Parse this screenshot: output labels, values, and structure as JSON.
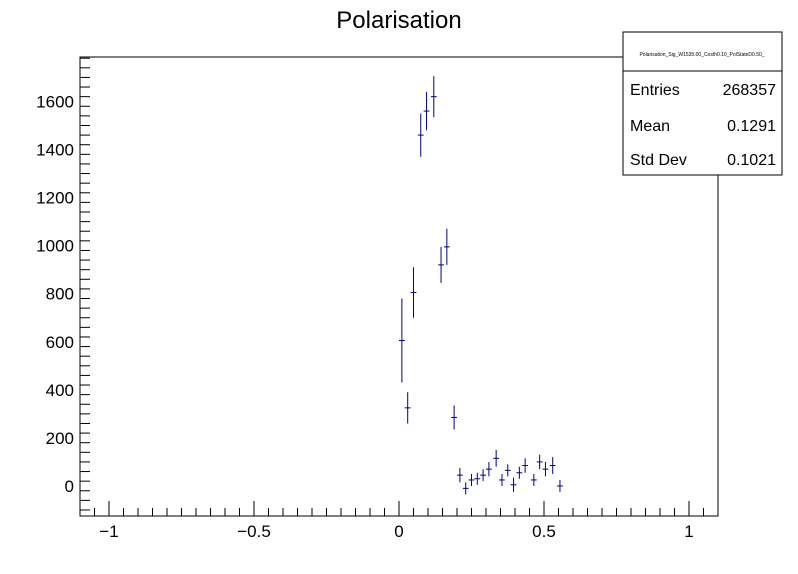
{
  "chart_data": {
    "type": "scatter",
    "title": "Polarisation",
    "xlabel": "",
    "ylabel": "",
    "xlim": [
      -1.1,
      1.1
    ],
    "ylim": [
      -125,
      1785
    ],
    "x_ticks": [
      -1,
      -0.5,
      0,
      0.5,
      1
    ],
    "x_tick_labels": [
      "−1",
      "−0.5",
      "0",
      "0.5",
      "1"
    ],
    "y_ticks": [
      0,
      200,
      400,
      600,
      800,
      1000,
      1200,
      1400,
      1600
    ],
    "y_tick_labels": [
      "0",
      "200",
      "400",
      "600",
      "800",
      "1000",
      "1200",
      "1400",
      "1600"
    ],
    "grid": false,
    "marker_color": "#000080",
    "bin_half_width": 0.01,
    "points": [
      {
        "x": 0.01,
        "y": 605,
        "err": 175
      },
      {
        "x": 0.03,
        "y": 325,
        "err": 65
      },
      {
        "x": 0.05,
        "y": 805,
        "err": 105
      },
      {
        "x": 0.075,
        "y": 1460,
        "err": 90
      },
      {
        "x": 0.095,
        "y": 1560,
        "err": 80
      },
      {
        "x": 0.12,
        "y": 1620,
        "err": 85
      },
      {
        "x": 0.145,
        "y": 920,
        "err": 75
      },
      {
        "x": 0.165,
        "y": 995,
        "err": 75
      },
      {
        "x": 0.19,
        "y": 285,
        "err": 50
      },
      {
        "x": 0.21,
        "y": 45,
        "err": 30
      },
      {
        "x": 0.23,
        "y": -10,
        "err": 25
      },
      {
        "x": 0.25,
        "y": 25,
        "err": 25
      },
      {
        "x": 0.27,
        "y": 30,
        "err": 25
      },
      {
        "x": 0.29,
        "y": 45,
        "err": 25
      },
      {
        "x": 0.31,
        "y": 70,
        "err": 30
      },
      {
        "x": 0.335,
        "y": 115,
        "err": 35
      },
      {
        "x": 0.355,
        "y": 25,
        "err": 25
      },
      {
        "x": 0.375,
        "y": 65,
        "err": 25
      },
      {
        "x": 0.395,
        "y": 5,
        "err": 30
      },
      {
        "x": 0.415,
        "y": 55,
        "err": 25
      },
      {
        "x": 0.435,
        "y": 85,
        "err": 30
      },
      {
        "x": 0.465,
        "y": 25,
        "err": 25
      },
      {
        "x": 0.485,
        "y": 100,
        "err": 30
      },
      {
        "x": 0.505,
        "y": 70,
        "err": 30
      },
      {
        "x": 0.53,
        "y": 85,
        "err": 35
      },
      {
        "x": 0.555,
        "y": 0,
        "err": 25
      }
    ],
    "stats_box": {
      "name": "Polarisation_Sig_W1535.00_Costh0.10_PolStateD0.50_",
      "rows": [
        {
          "label": "Entries",
          "value": "268357"
        },
        {
          "label": "Mean",
          "value": "0.1291"
        },
        {
          "label": "Std Dev",
          "value": "0.1021"
        }
      ]
    }
  }
}
